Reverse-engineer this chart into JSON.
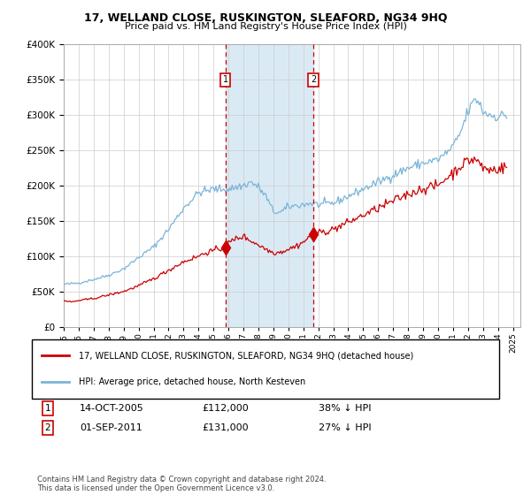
{
  "title": "17, WELLAND CLOSE, RUSKINGTON, SLEAFORD, NG34 9HQ",
  "subtitle": "Price paid vs. HM Land Registry's House Price Index (HPI)",
  "legend_line1": "17, WELLAND CLOSE, RUSKINGTON, SLEAFORD, NG34 9HQ (detached house)",
  "legend_line2": "HPI: Average price, detached house, North Kesteven",
  "transaction1_date": "14-OCT-2005",
  "transaction1_price": "£112,000",
  "transaction1_pct": "38% ↓ HPI",
  "transaction2_date": "01-SEP-2011",
  "transaction2_price": "£131,000",
  "transaction2_pct": "27% ↓ HPI",
  "footnote": "Contains HM Land Registry data © Crown copyright and database right 2024.\nThis data is licensed under the Open Government Licence v3.0.",
  "hpi_color": "#7ab4d8",
  "price_color": "#cc0000",
  "shade_color": "#daeaf5",
  "marker_color": "#cc0000",
  "grid_color": "#cccccc",
  "ylim": [
    0,
    400000
  ],
  "yticks": [
    0,
    50000,
    100000,
    150000,
    200000,
    250000,
    300000,
    350000,
    400000
  ],
  "xlim_start": 1995.0,
  "xlim_end": 2025.5,
  "transaction1_x": 2005.79,
  "transaction1_y": 112000,
  "transaction2_x": 2011.67,
  "transaction2_y": 131000
}
